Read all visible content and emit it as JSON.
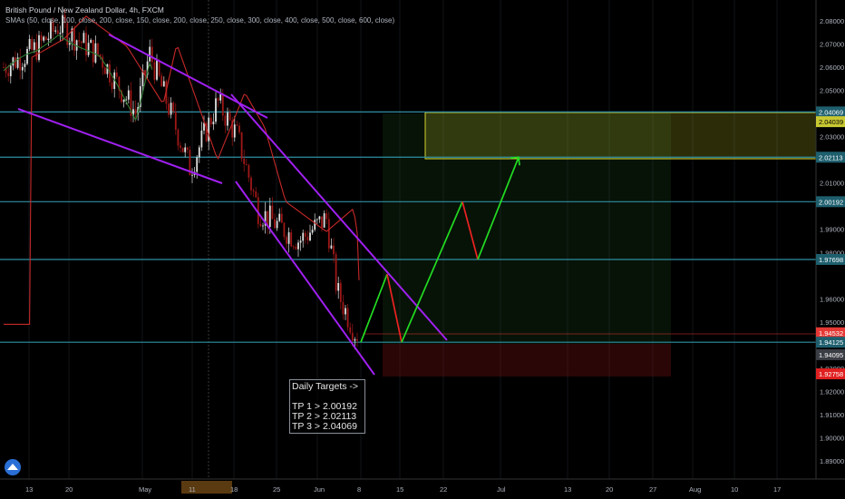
{
  "header": {
    "title": "British Pound / New Zealand Dollar, 4h, FXCM",
    "indicator": "SMAs (50, close, 100, close, 200, close, 150, close, 200, close, 250, close, 300, close, 400, close, 500, close, 600, close)"
  },
  "targets": {
    "heading": "Daily Targets ->",
    "tp1": "TP 1 > 2.00192",
    "tp2": "TP 2 > 2.02113",
    "tp3": "TP 3 > 2.04069"
  },
  "colors": {
    "background": "#000000",
    "level_line": "#2e8fa3",
    "channel": "#a020f0",
    "path_up": "#22dd22",
    "path_down": "#ee2222",
    "sma": "#c62828",
    "sma_green": "#2e7d32",
    "target_zone": "#d6d632",
    "current_price": "#e53935",
    "candle_up": "#e0e0e0",
    "candle_down": "#a01818"
  },
  "chart_data": {
    "type": "candlestick",
    "symbol": "GBPNZD",
    "timeframe": "4h",
    "source": "FXCM",
    "y_ticks": [
      "2.08000",
      "2.07000",
      "2.06000",
      "2.05000",
      "2.03000",
      "2.01000",
      "1.99000",
      "1.98000",
      "1.96000",
      "1.95000",
      "1.93000",
      "1.92000",
      "1.91000",
      "1.90000",
      "1.89000"
    ],
    "x_ticks": [
      "13",
      "20",
      "May",
      "11",
      "18",
      "25",
      "Jun",
      "8",
      "15",
      "22",
      "Jul",
      "13",
      "20",
      "27",
      "Aug",
      "10",
      "17"
    ],
    "price_tags": [
      {
        "label": "2.04069",
        "value": 2.04069,
        "style": "level"
      },
      {
        "label": "2.04039",
        "value": 2.04039,
        "style": "zone"
      },
      {
        "label": "2.02113",
        "value": 2.02113,
        "style": "level"
      },
      {
        "label": "2.00192",
        "value": 2.00192,
        "style": "level"
      },
      {
        "label": "1.97698",
        "value": 1.97698,
        "style": "level"
      },
      {
        "label": "1.94532",
        "value": 1.94532,
        "style": "current"
      },
      {
        "label": "1.94125",
        "value": 1.94125,
        "style": "level"
      },
      {
        "label": "1.94095",
        "value": 1.94095,
        "style": "dark"
      },
      {
        "label": "1.92758",
        "value": 1.92758,
        "style": "stop"
      }
    ],
    "horizontal_levels": [
      2.04069,
      2.02113,
      2.00192,
      1.97698,
      1.94125
    ],
    "target_zone": {
      "from": 2.02113,
      "to": 2.04069
    },
    "projection_path": [
      1.94125,
      1.9706,
      1.94125,
      2.00192,
      1.97698,
      2.02113
    ],
    "long_position": {
      "entry": 1.94125,
      "stop": 1.92758,
      "target": 2.04069
    }
  }
}
